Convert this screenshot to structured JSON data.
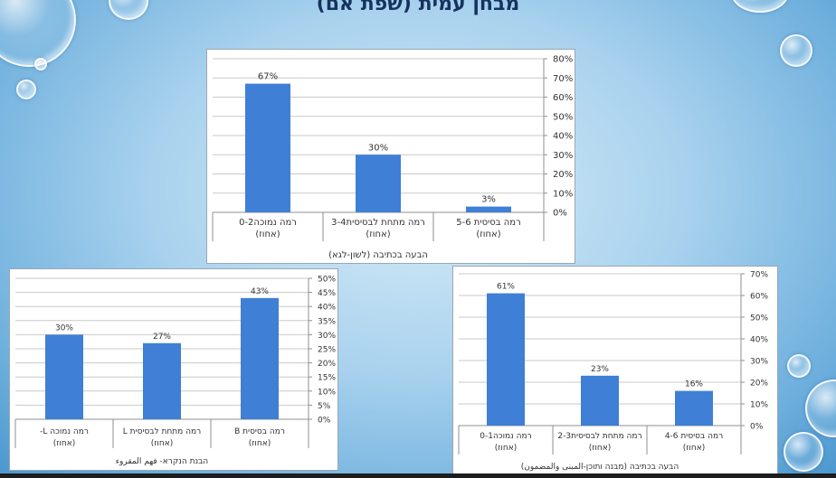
{
  "page": {
    "title": "מבחן עמית (שפת אם)"
  },
  "colors": {
    "bar": "#3f7fd6",
    "grid": "#c9c9c9",
    "axis": "#8f8f8f",
    "text": "#333333"
  },
  "chart_data": [
    {
      "type": "bar",
      "categories": [
        "רמה נמוכה0-2 (אחוז)",
        "רמה מתחת לבסיסית3-4 (אחוז)",
        "רמה בסיסית 5-6 (אחוז)"
      ],
      "values": [
        67,
        30,
        3
      ],
      "data_labels": [
        "67%",
        "30%",
        "3%"
      ],
      "title": "",
      "xlabel": "הבעה בכתיבה (לשון-לגא)",
      "ylabel": "",
      "ylim": [
        0,
        80
      ],
      "yticks": [
        "0%",
        "10%",
        "20%",
        "30%",
        "40%",
        "50%",
        "60%",
        "70%",
        "80%"
      ],
      "grid": true,
      "legend": "none"
    },
    {
      "type": "bar",
      "categories": [
        "רמה נמוכה L- (אחוז)",
        "רמה מתחת לבסיסית L(אחוז)",
        "רמה בסיסית B(אחוז)"
      ],
      "values": [
        30,
        27,
        43
      ],
      "data_labels": [
        "30%",
        "27%",
        "43%"
      ],
      "title": "",
      "xlabel": "הבנת הנקרא- فهم المقروء",
      "ylabel": "",
      "ylim": [
        0,
        50
      ],
      "yticks": [
        "0%",
        "5%",
        "10%",
        "15%",
        "20%",
        "25%",
        "30%",
        "35%",
        "40%",
        "45%",
        "50%"
      ],
      "grid": true,
      "legend": "none"
    },
    {
      "type": "bar",
      "categories": [
        "רמה נמוכה0-1 (אחוז)",
        "רמה מתחת לבסיסית2-3 (אחוז)",
        "רמה בסיסית 4-6 (אחוז)"
      ],
      "values": [
        61,
        23,
        16
      ],
      "data_labels": [
        "61%",
        "23%",
        "16%"
      ],
      "title": "",
      "xlabel": "הבעה בכתיבה (מבנה ותוכן-المبنى والمضمون)",
      "ylabel": "",
      "ylim": [
        0,
        70
      ],
      "yticks": [
        "0%",
        "10%",
        "20%",
        "30%",
        "40%",
        "50%",
        "60%",
        "70%"
      ],
      "grid": true,
      "legend": "none"
    }
  ]
}
